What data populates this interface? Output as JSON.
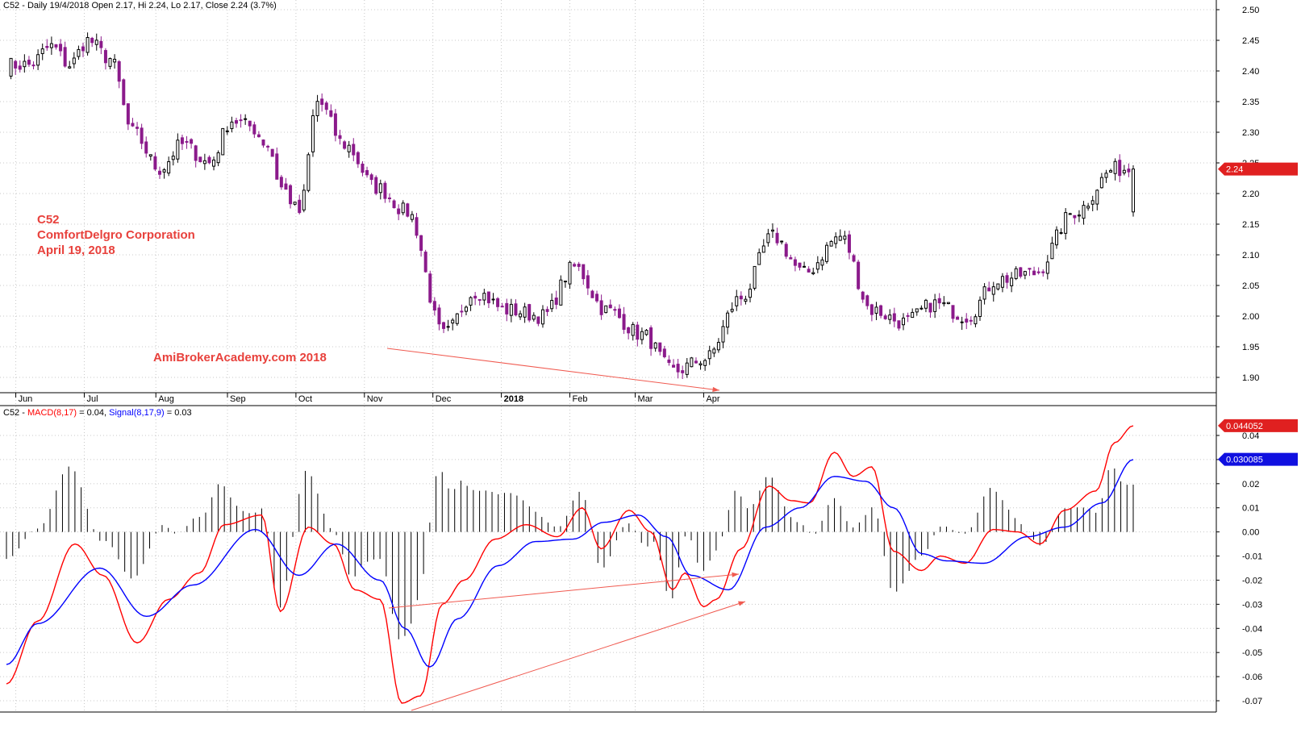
{
  "price_panel": {
    "header": "C52 - Daily 19/4/2018 Open 2.17, Hi 2.24, Lo 2.17, Close 2.24 (3.7%)",
    "last_price_label": "2.24",
    "y_ticks": [
      "2.50",
      "2.45",
      "2.40",
      "2.35",
      "2.30",
      "2.25",
      "2.20",
      "2.15",
      "2.10",
      "2.05",
      "2.00",
      "1.95",
      "1.90"
    ],
    "annotation_lines": [
      "C52",
      "ComfortDelgro Corporation",
      "April 19, 2018"
    ],
    "watermark": "AmiBrokerAcademy.com  2018"
  },
  "macd_panel": {
    "header_prefix": "C52 - ",
    "macd_label": "MACD(8,17)",
    "macd_value_text": " = 0.04, ",
    "signal_label": "Signal(8,17,9)",
    "signal_value_text": " = 0.03",
    "macd_last_label": "0.044052",
    "signal_last_label": "0.030085",
    "y_ticks": [
      "0.04",
      "0.03",
      "0.02",
      "0.01",
      "0.00",
      "-0.01",
      "-0.02",
      "-0.03",
      "-0.04",
      "-0.05",
      "-0.06",
      "-0.07"
    ]
  },
  "x_axis_months": [
    "Jun",
    "Jul",
    "Aug",
    "Sep",
    "Oct",
    "Nov",
    "Dec",
    "2018",
    "Feb",
    "Mar",
    "Apr"
  ],
  "colors": {
    "up_candle": "#ffffff",
    "down_candle": "#8b1a8b",
    "macd_line": "#ff0000",
    "signal_line": "#0000ff",
    "annotation": "#e8413c",
    "arrow": "#f05a50",
    "grid": "#c8c8c8"
  },
  "chart_data": [
    {
      "type": "candlestick",
      "ticker": "C52",
      "company": "ComfortDelgro Corporation",
      "ylim": [
        1.87,
        2.51
      ],
      "price_anchors_close": [
        [
          "Jun",
          2.41
        ],
        [
          "Jun",
          2.44
        ],
        [
          "Jun",
          2.41
        ],
        [
          "Jun",
          2.45
        ],
        [
          "Jun",
          2.42
        ],
        [
          "Jul",
          2.3
        ],
        [
          "Jul",
          2.24
        ],
        [
          "Jul",
          2.28
        ],
        [
          "Jul",
          2.25
        ],
        [
          "Aug",
          2.32
        ],
        [
          "Aug",
          2.31
        ],
        [
          "Aug",
          2.28
        ],
        [
          "Aug",
          2.21
        ],
        [
          "Aug",
          2.17
        ],
        [
          "Aug",
          2.35
        ],
        [
          "Sep",
          2.28
        ],
        [
          "Sep",
          2.21
        ],
        [
          "Sep",
          2.17
        ],
        [
          "Oct",
          1.97
        ],
        [
          "Oct",
          2.04
        ],
        [
          "Oct",
          2.01
        ],
        [
          "Nov",
          2.0
        ],
        [
          "Nov",
          2.08
        ],
        [
          "Nov",
          2.01
        ],
        [
          "Dec",
          1.97
        ],
        [
          "Dec",
          1.91
        ],
        [
          "Dec",
          1.93
        ],
        [
          "2018",
          2.03
        ],
        [
          "2018",
          2.13
        ],
        [
          "2018",
          2.07
        ],
        [
          "Feb",
          2.13
        ],
        [
          "Feb",
          2.01
        ],
        [
          "Feb",
          1.99
        ],
        [
          "Mar",
          2.02
        ],
        [
          "Mar",
          2.0
        ],
        [
          "Mar",
          2.06
        ],
        [
          "Apr",
          2.07
        ],
        [
          "Apr",
          2.17
        ],
        [
          "Apr",
          2.24
        ]
      ],
      "last": {
        "date": "19/4/2018",
        "open": 2.17,
        "high": 2.24,
        "low": 2.17,
        "close": 2.24,
        "change_pct": 3.7
      }
    },
    {
      "type": "line",
      "title": "MACD(8,17), Signal(8,17,9)",
      "ylim": [
        -0.073,
        0.045
      ],
      "x": [
        "Jun",
        "Jul",
        "Aug",
        "Sep",
        "Oct",
        "Nov",
        "Dec",
        "2018",
        "Feb",
        "Mar",
        "Apr"
      ],
      "series": [
        {
          "name": "MACD(8,17)",
          "color": "#ff0000",
          "anchors": [
            [
              0,
              -0.063
            ],
            [
              10,
              -0.037
            ],
            [
              22,
              -0.005
            ],
            [
              31,
              -0.018
            ],
            [
              42,
              -0.046
            ],
            [
              52,
              -0.028
            ],
            [
              62,
              -0.017
            ],
            [
              70,
              0.003
            ],
            [
              82,
              0.007
            ],
            [
              88,
              -0.033
            ],
            [
              97,
              0.002
            ],
            [
              105,
              -0.005
            ],
            [
              112,
              -0.024
            ],
            [
              120,
              -0.028
            ],
            [
              127,
              -0.071
            ],
            [
              133,
              -0.068
            ],
            [
              140,
              -0.03
            ],
            [
              147,
              -0.02
            ],
            [
              157,
              -0.003
            ],
            [
              167,
              0.003
            ],
            [
              177,
              -0.002
            ],
            [
              185,
              0.01
            ],
            [
              191,
              -0.007
            ],
            [
              200,
              0.009
            ],
            [
              207,
              0.0
            ],
            [
              214,
              -0.024
            ],
            [
              218,
              -0.017
            ],
            [
              224,
              -0.031
            ],
            [
              228,
              -0.028
            ],
            [
              236,
              -0.007
            ],
            [
              245,
              0.019
            ],
            [
              252,
              0.013
            ],
            [
              258,
              0.012
            ],
            [
              266,
              0.033
            ],
            [
              272,
              0.023
            ],
            [
              278,
              0.027
            ],
            [
              285,
              -0.008
            ],
            [
              294,
              -0.016
            ],
            [
              300,
              -0.01
            ],
            [
              308,
              -0.013
            ],
            [
              317,
              0.001
            ],
            [
              325,
              0.0
            ],
            [
              332,
              -0.005
            ],
            [
              340,
              0.009
            ],
            [
              350,
              0.017
            ],
            [
              356,
              0.037
            ],
            [
              362,
              0.044
            ]
          ]
        },
        {
          "name": "Signal(8,17,9)",
          "color": "#0000ff",
          "anchors": [
            [
              0,
              -0.055
            ],
            [
              10,
              -0.038
            ],
            [
              30,
              -0.015
            ],
            [
              45,
              -0.035
            ],
            [
              60,
              -0.022
            ],
            [
              80,
              0.001
            ],
            [
              94,
              -0.018
            ],
            [
              106,
              -0.005
            ],
            [
              120,
              -0.02
            ],
            [
              128,
              -0.04
            ],
            [
              136,
              -0.056
            ],
            [
              145,
              -0.036
            ],
            [
              158,
              -0.014
            ],
            [
              170,
              -0.004
            ],
            [
              182,
              -0.003
            ],
            [
              192,
              0.004
            ],
            [
              203,
              0.007
            ],
            [
              212,
              -0.002
            ],
            [
              220,
              -0.018
            ],
            [
              232,
              -0.024
            ],
            [
              244,
              0.002
            ],
            [
              255,
              0.01
            ],
            [
              266,
              0.023
            ],
            [
              276,
              0.021
            ],
            [
              285,
              0.01
            ],
            [
              294,
              -0.009
            ],
            [
              302,
              -0.012
            ],
            [
              314,
              -0.013
            ],
            [
              328,
              -0.002
            ],
            [
              340,
              0.002
            ],
            [
              352,
              0.012
            ],
            [
              362,
              0.03
            ]
          ]
        }
      ],
      "histogram_series": "MACD minus Signal (black bars)"
    }
  ]
}
